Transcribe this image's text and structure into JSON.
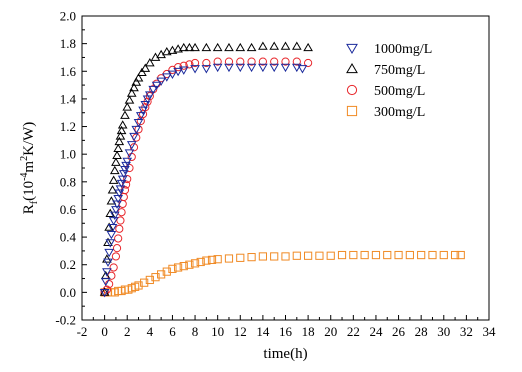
{
  "chart_data": {
    "type": "scatter",
    "title": "",
    "xlabel": "time(h)",
    "ylabel": "R_f (10^-4 m^2 K/W)",
    "ylabel_parts": {
      "base": "R",
      "base_sub": "f",
      "open": "(10",
      "exp1": "-4",
      "m": "m",
      "exp2": "2",
      "rest": "K/W)"
    },
    "xlim": [
      -2,
      34
    ],
    "ylim": [
      -0.2,
      2.0
    ],
    "xticks": [
      "-2",
      "0",
      "2",
      "4",
      "6",
      "8",
      "10",
      "12",
      "14",
      "16",
      "18",
      "20",
      "22",
      "24",
      "26",
      "28",
      "30",
      "32",
      "34"
    ],
    "yticks": [
      "-0.2",
      "0.0",
      "0.2",
      "0.4",
      "0.6",
      "0.8",
      "1.0",
      "1.2",
      "1.4",
      "1.6",
      "1.8",
      "2.0"
    ],
    "grid": false,
    "legend_position": "top-right",
    "series": [
      {
        "name": "1000mg/L",
        "marker": "triangle-down",
        "color": "#1a2a9c",
        "x": [
          0,
          0.1,
          0.2,
          0.3,
          0.4,
          0.5,
          0.6,
          0.7,
          0.8,
          0.9,
          1.0,
          1.1,
          1.2,
          1.3,
          1.4,
          1.5,
          1.6,
          1.7,
          1.8,
          1.9,
          2.0,
          2.2,
          2.4,
          2.6,
          2.8,
          3.0,
          3.2,
          3.4,
          3.6,
          3.8,
          4.0,
          4.3,
          4.6,
          5.0,
          5.5,
          6.0,
          6.5,
          7.0,
          8.0,
          9.0,
          10.0,
          11.0,
          12.0,
          13.0,
          14.0,
          15.0,
          16.0,
          17.0,
          17.5
        ],
        "y": [
          0.0,
          0.08,
          0.15,
          0.22,
          0.29,
          0.36,
          0.42,
          0.47,
          0.52,
          0.56,
          0.6,
          0.64,
          0.68,
          0.72,
          0.75,
          0.79,
          0.82,
          0.86,
          0.89,
          0.92,
          0.95,
          1.01,
          1.07,
          1.13,
          1.18,
          1.23,
          1.28,
          1.32,
          1.36,
          1.4,
          1.43,
          1.47,
          1.5,
          1.53,
          1.56,
          1.58,
          1.6,
          1.61,
          1.62,
          1.62,
          1.63,
          1.63,
          1.63,
          1.63,
          1.63,
          1.63,
          1.63,
          1.63,
          1.62
        ]
      },
      {
        "name": "750mg/L",
        "marker": "triangle-up",
        "color": "#000000",
        "x": [
          0,
          0.1,
          0.2,
          0.3,
          0.4,
          0.5,
          0.6,
          0.7,
          0.8,
          0.9,
          1.0,
          1.1,
          1.2,
          1.3,
          1.4,
          1.5,
          1.6,
          1.8,
          2.0,
          2.2,
          2.4,
          2.6,
          2.8,
          3.0,
          3.3,
          3.6,
          4.0,
          4.5,
          5.0,
          5.5,
          6.0,
          6.5,
          7.0,
          7.5,
          8.0,
          9.0,
          10.0,
          11.0,
          12.0,
          13.0,
          14.0,
          15.0,
          16.0,
          17.0,
          18.0
        ],
        "y": [
          0.0,
          0.12,
          0.24,
          0.36,
          0.47,
          0.57,
          0.66,
          0.74,
          0.81,
          0.88,
          0.94,
          0.99,
          1.04,
          1.09,
          1.13,
          1.17,
          1.21,
          1.28,
          1.34,
          1.39,
          1.44,
          1.48,
          1.52,
          1.55,
          1.59,
          1.62,
          1.66,
          1.7,
          1.72,
          1.74,
          1.75,
          1.76,
          1.77,
          1.77,
          1.77,
          1.77,
          1.77,
          1.77,
          1.77,
          1.77,
          1.78,
          1.78,
          1.78,
          1.78,
          1.77
        ]
      },
      {
        "name": "500mg/L",
        "marker": "circle",
        "color": "#e8262b",
        "x": [
          0,
          0.2,
          0.4,
          0.6,
          0.8,
          1.0,
          1.1,
          1.2,
          1.3,
          1.4,
          1.5,
          1.6,
          1.7,
          1.8,
          1.9,
          2.0,
          2.2,
          2.4,
          2.6,
          2.8,
          3.0,
          3.2,
          3.4,
          3.6,
          3.8,
          4.0,
          4.3,
          4.6,
          5.0,
          5.5,
          6.0,
          6.5,
          7.0,
          7.5,
          8.0,
          9.0,
          10.0,
          11.0,
          12.0,
          13.0,
          14.0,
          15.0,
          16.0,
          17.0,
          18.0
        ],
        "y": [
          0.0,
          0.02,
          0.06,
          0.12,
          0.18,
          0.26,
          0.32,
          0.39,
          0.46,
          0.52,
          0.58,
          0.64,
          0.69,
          0.74,
          0.78,
          0.82,
          0.9,
          0.98,
          1.05,
          1.12,
          1.18,
          1.24,
          1.29,
          1.34,
          1.38,
          1.42,
          1.47,
          1.51,
          1.55,
          1.58,
          1.61,
          1.63,
          1.64,
          1.65,
          1.66,
          1.66,
          1.67,
          1.67,
          1.67,
          1.67,
          1.67,
          1.67,
          1.67,
          1.67,
          1.66
        ]
      },
      {
        "name": "300mg/L",
        "marker": "square",
        "color": "#f08a24",
        "x": [
          0,
          0.3,
          0.6,
          0.9,
          1.2,
          1.5,
          1.8,
          2.1,
          2.4,
          2.7,
          3.0,
          3.5,
          4.0,
          4.5,
          5.0,
          5.5,
          6.0,
          6.5,
          7.0,
          7.5,
          8.0,
          8.5,
          9.0,
          9.5,
          10.0,
          11.0,
          12.0,
          13.0,
          14.0,
          15.0,
          16.0,
          17.0,
          18.0,
          19.0,
          20.0,
          21.0,
          22.0,
          23.0,
          24.0,
          25.0,
          26.0,
          27.0,
          28.0,
          29.0,
          30.0,
          31.0,
          31.5
        ],
        "y": [
          0.0,
          0.0,
          0.0,
          0.0,
          0.01,
          0.01,
          0.02,
          0.02,
          0.03,
          0.04,
          0.05,
          0.07,
          0.09,
          0.11,
          0.13,
          0.15,
          0.17,
          0.18,
          0.19,
          0.2,
          0.21,
          0.22,
          0.23,
          0.235,
          0.24,
          0.245,
          0.25,
          0.255,
          0.26,
          0.26,
          0.26,
          0.265,
          0.265,
          0.265,
          0.265,
          0.27,
          0.27,
          0.27,
          0.27,
          0.27,
          0.27,
          0.27,
          0.27,
          0.27,
          0.27,
          0.27,
          0.27
        ]
      }
    ]
  }
}
